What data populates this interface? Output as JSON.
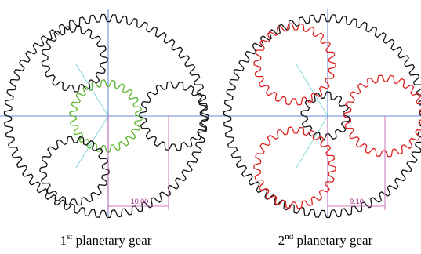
{
  "panels": [
    {
      "dimension": "10.00",
      "caption": {
        "ordinal": "1",
        "suffix": "st",
        "text": " planetary gear"
      }
    },
    {
      "dimension": "9.10",
      "caption": {
        "ordinal": "2",
        "suffix": "nd",
        "text": " planetary gear"
      }
    }
  ]
}
